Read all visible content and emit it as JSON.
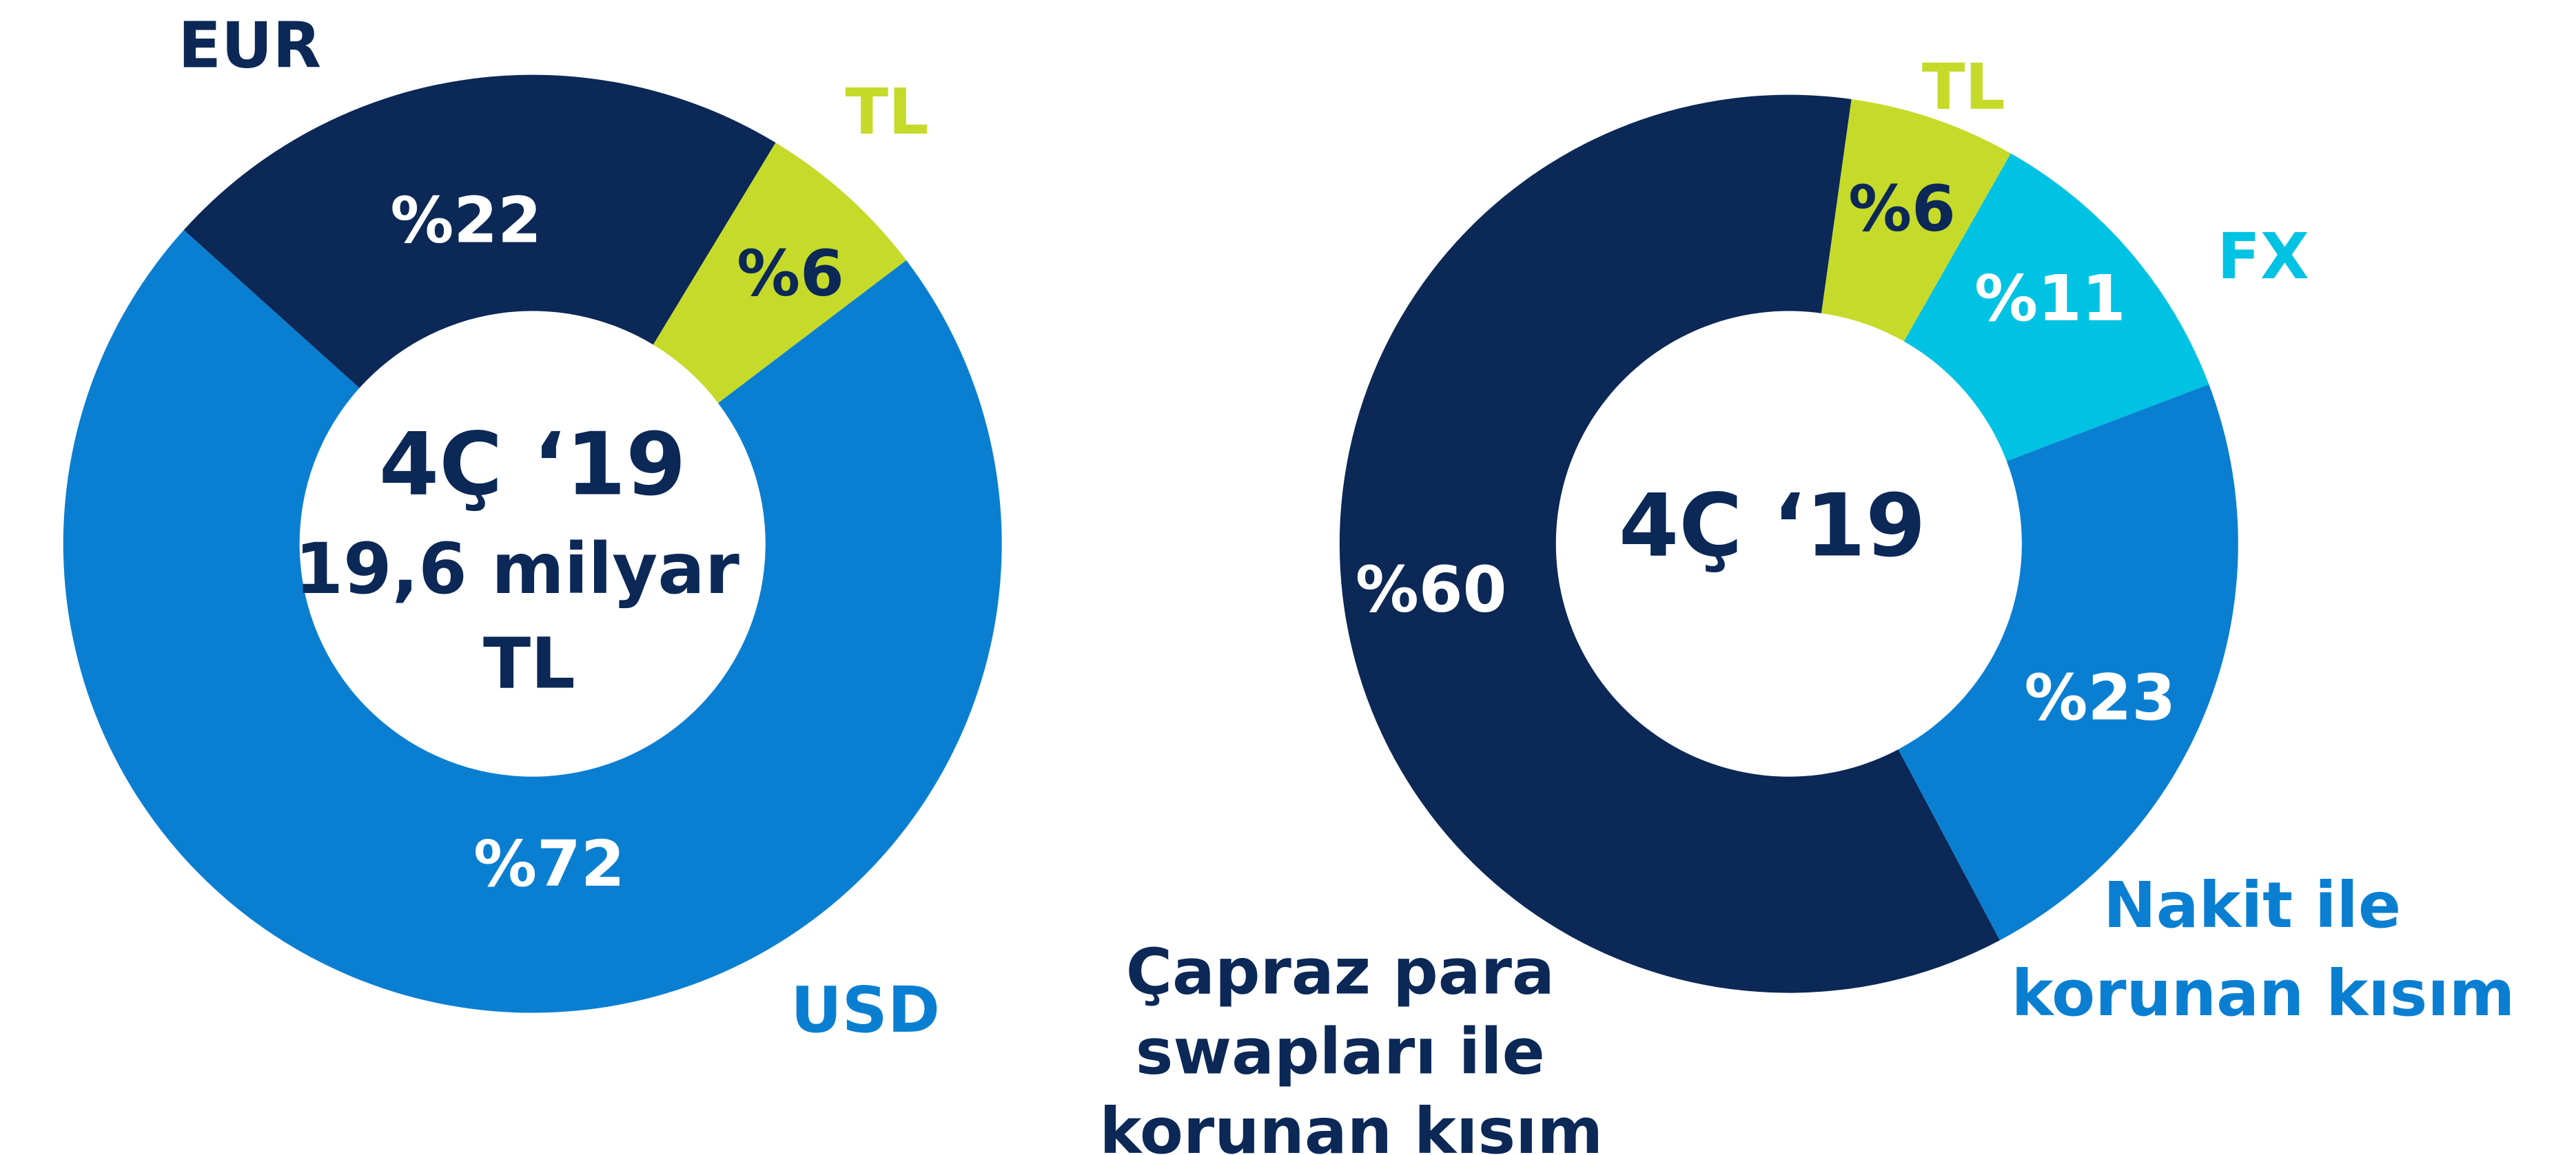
{
  "chart_data": [
    {
      "type": "pie",
      "categories": [
        "EUR",
        "TL",
        "USD"
      ],
      "values": [
        22,
        6,
        72
      ],
      "value_labels": [
        "%22",
        "%6",
        "%72"
      ],
      "colors": [
        "#0b2856",
        "#c6da2a",
        "#0a7fd2"
      ],
      "center_text": [
        "4Ç ‘19",
        "19,6 milyar TL"
      ]
    },
    {
      "type": "pie",
      "categories": [
        "TL",
        "FX",
        "Nakit ile korunan kısım",
        "Çapraz para swapları ile korunan kısım"
      ],
      "values": [
        6,
        11,
        23,
        60
      ],
      "value_labels": [
        "%6",
        "%11",
        "%23",
        "%60"
      ],
      "colors": [
        "#c6da2a",
        "#00c2e3",
        "#0a7fd2",
        "#0b2856"
      ],
      "center_text": [
        "4Ç ‘19"
      ]
    }
  ]
}
